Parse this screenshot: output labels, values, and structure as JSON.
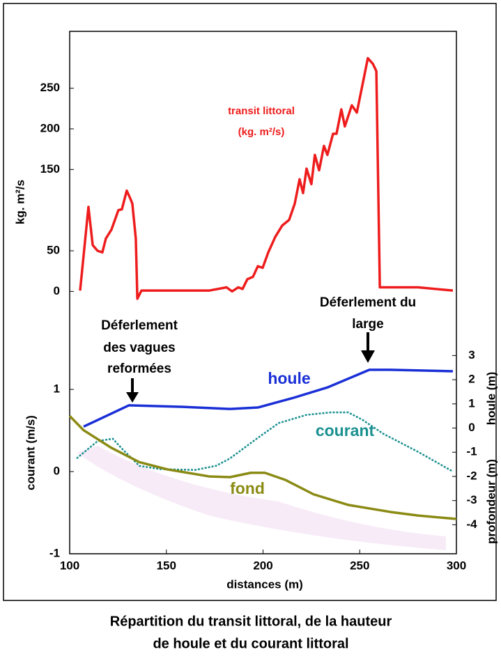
{
  "chart_data": [
    {
      "type": "line",
      "ylabel": "kg. m²/s",
      "color": "#ee1c1c",
      "annotations": [
        "transit littoral",
        "(kg. m²/s)"
      ],
      "xlim": [
        100,
        300
      ],
      "ylim": [
        -70,
        320
      ],
      "yticks": [
        0,
        50,
        150,
        200,
        250
      ],
      "x": [
        105.4,
        109.7,
        111.9,
        114.4,
        116.9,
        118.7,
        121.6,
        125.2,
        127.0,
        129.5,
        131.4,
        132.4,
        134.2,
        135.0,
        137.1,
        146.8,
        172.1,
        181.1,
        184.0,
        187.2,
        189.4,
        191.9,
        194.8,
        197.3,
        199.8,
        202.7,
        206.3,
        209.9,
        213.5,
        216.4,
        218.9,
        220.7,
        222.5,
        225.0,
        226.8,
        229.0,
        231.5,
        233.3,
        236.2,
        238.0,
        240.5,
        242.3,
        245.9,
        248.5,
        251.4,
        254.2,
        256.8,
        258.6,
        260.4,
        280.2,
        298.2
      ],
      "values": [
        1,
        104,
        57,
        50,
        48,
        65,
        76,
        100,
        101,
        124,
        114,
        108,
        65,
        -9,
        1,
        1,
        1,
        5,
        0,
        5,
        3,
        15,
        18,
        31,
        29,
        48,
        67,
        81,
        88,
        108,
        138,
        121,
        151,
        132,
        168,
        149,
        179,
        168,
        194,
        194,
        224,
        203,
        229,
        220,
        254,
        287,
        280,
        271,
        5,
        5,
        1
      ]
    },
    {
      "type": "line",
      "xlabel": "distances (m)",
      "ylabel": "courant (m/s)",
      "y2label": [
        "houle (m)",
        "profondeur (m)"
      ],
      "annotations": [
        [
          "Déferlement",
          "des vagues",
          "reformées"
        ],
        [
          "Déferlement du",
          "large"
        ]
      ],
      "xlim": [
        100,
        300
      ],
      "xticks": [
        100,
        150,
        200,
        250,
        300
      ],
      "ylim": [
        -1.0,
        1.5
      ],
      "yticks": [
        -1,
        0,
        1
      ],
      "y2lim": [
        -5.2,
        3.3
      ],
      "y2ticks": [
        3,
        2,
        1,
        0,
        -1,
        -2,
        -3,
        -4
      ],
      "series": [
        {
          "name": "houle",
          "color": "#1a2fd6",
          "axis": "y2",
          "x": [
            107.2,
            130.6,
            157.7,
            182.9,
            197.3,
            215.3,
            233.3,
            255.0,
            265.8,
            298.2
          ],
          "values": [
            0.06,
            0.94,
            0.88,
            0.79,
            0.85,
            1.24,
            1.68,
            2.41,
            2.41,
            2.35
          ]
        },
        {
          "name": "courant",
          "color": "#1a8f8f",
          "x": [
            103.6,
            114.4,
            122.3,
            127.0,
            136.0,
            146.8,
            164.9,
            175.7,
            182.9,
            197.3,
            208.1,
            222.5,
            235.1,
            244.1,
            251.4,
            262.2,
            280.2,
            298.2
          ],
          "values": [
            0.16,
            0.37,
            0.4,
            0.28,
            0.07,
            0.03,
            0.02,
            0.07,
            0.16,
            0.41,
            0.59,
            0.69,
            0.72,
            0.72,
            0.63,
            0.46,
            0.24,
            0.0
          ]
        },
        {
          "name": "fond",
          "color": "#8a8a14",
          "axis": "y2",
          "x": [
            100.0,
            107.2,
            121.6,
            136.0,
            150.5,
            172.1,
            182.9,
            193.7,
            200.9,
            211.7,
            226.1,
            244.1,
            265.8,
            280.2,
            300.0
          ],
          "values": [
            0.5,
            -0.09,
            -0.82,
            -1.41,
            -1.71,
            -2.0,
            -2.03,
            -1.85,
            -1.85,
            -2.15,
            -2.74,
            -3.18,
            -3.47,
            -3.62,
            -3.76
          ]
        }
      ]
    }
  ],
  "caption": [
    "Répartition du transit littoral, de la hauteur",
    "de houle et du courant littoral"
  ]
}
